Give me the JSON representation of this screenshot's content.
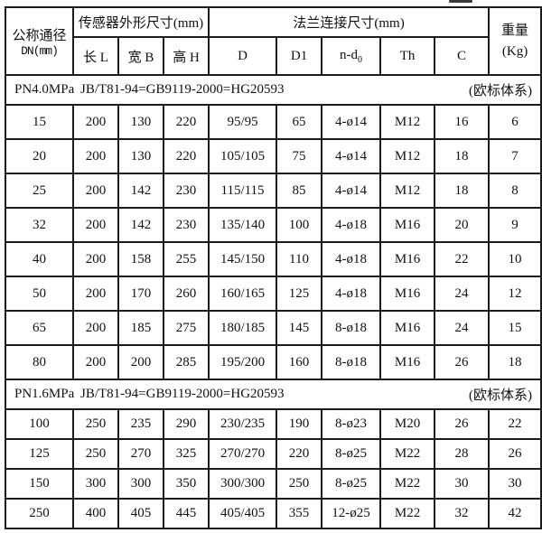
{
  "table": {
    "header": {
      "dn_line1": "公称通径",
      "dn_line2": "DN(mm)",
      "sensor_group": "传感器外形尺寸(mm)",
      "flange_group": "法兰连接尺寸(mm)",
      "weight_line1": "重量",
      "weight_line2": "(Kg)",
      "sub_headers": [
        "长 L",
        "宽 B",
        "高 H",
        "D",
        "D1",
        "n-d",
        "Th",
        "C"
      ],
      "nd_subscript": "0"
    },
    "sections": [
      {
        "pn": "PN4.0MPa",
        "standard": "JB/T81-94=GB9119-2000=HG20593",
        "note": "(欧标体系)",
        "rows": [
          [
            "15",
            "200",
            "130",
            "220",
            "95/95",
            "65",
            "4-ø14",
            "M12",
            "16",
            "6"
          ],
          [
            "20",
            "200",
            "130",
            "220",
            "105/105",
            "75",
            "4-ø14",
            "M12",
            "18",
            "7"
          ],
          [
            "25",
            "200",
            "142",
            "230",
            "115/115",
            "85",
            "4-ø14",
            "M12",
            "18",
            "8"
          ],
          [
            "32",
            "200",
            "142",
            "230",
            "135/140",
            "100",
            "4-ø18",
            "M16",
            "20",
            "9"
          ],
          [
            "40",
            "200",
            "158",
            "255",
            "145/150",
            "110",
            "4-ø18",
            "M16",
            "22",
            "10"
          ],
          [
            "50",
            "200",
            "170",
            "260",
            "160/165",
            "125",
            "4-ø18",
            "M16",
            "24",
            "12"
          ],
          [
            "65",
            "200",
            "185",
            "275",
            "180/185",
            "145",
            "8-ø18",
            "M16",
            "24",
            "15"
          ],
          [
            "80",
            "200",
            "200",
            "285",
            "195/200",
            "160",
            "8-ø18",
            "M16",
            "26",
            "18"
          ]
        ]
      },
      {
        "pn": "PN1.6MPa",
        "standard": "JB/T81-94=GB9119-2000=HG20593",
        "note": "(欧标体系)",
        "rows": [
          [
            "100",
            "250",
            "235",
            "290",
            "230/235",
            "190",
            "8-ø23",
            "M20",
            "26",
            "22"
          ],
          [
            "125",
            "250",
            "270",
            "325",
            "270/270",
            "220",
            "8-ø25",
            "M22",
            "28",
            "26"
          ],
          [
            "150",
            "300",
            "300",
            "350",
            "300/300",
            "250",
            "8-ø25",
            "M22",
            "30",
            "30"
          ],
          [
            "250",
            "400",
            "405",
            "445",
            "405/405",
            "355",
            "12-ø25",
            "M22",
            "32",
            "42"
          ]
        ]
      }
    ]
  }
}
